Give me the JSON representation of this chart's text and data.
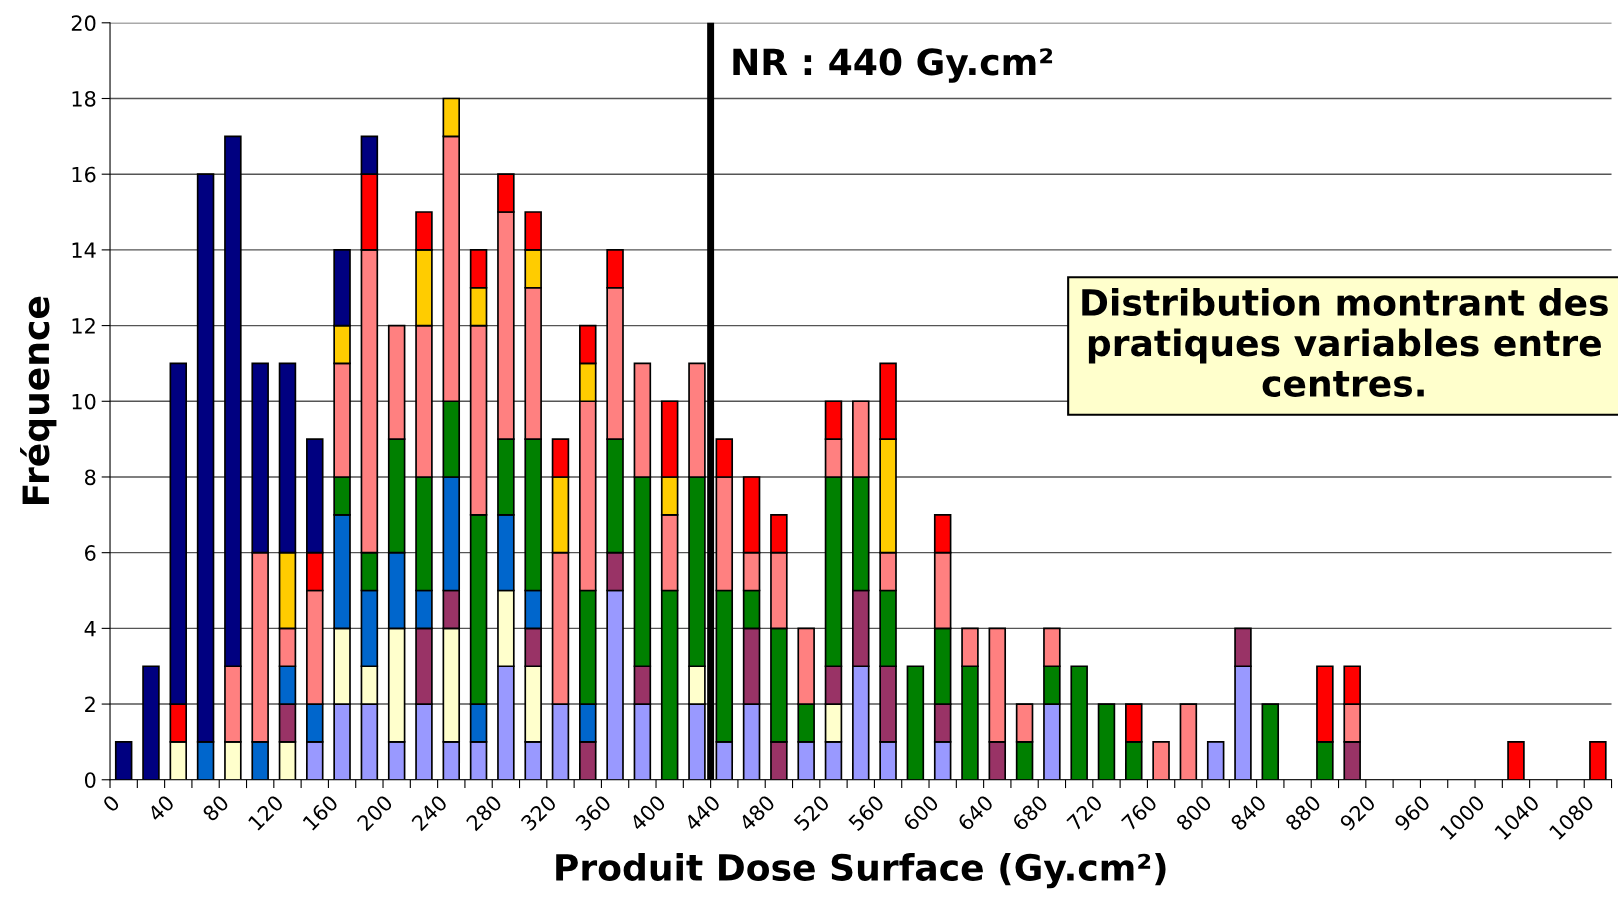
{
  "chart_data": {
    "type": "bar",
    "stacked": true,
    "xlabel": "Produit Dose Surface (Gy.cm²)",
    "ylabel": "Fréquence",
    "annotations": [
      "Distribution montrant des pratiques variables entre centres."
    ],
    "x": [
      10,
      30,
      50,
      70,
      90,
      110,
      130,
      150,
      170,
      190,
      210,
      230,
      250,
      270,
      290,
      310,
      330,
      350,
      370,
      390,
      410,
      430,
      450,
      470,
      490,
      510,
      530,
      550,
      570,
      590,
      610,
      630,
      650,
      670,
      690,
      710,
      730,
      750,
      770,
      790,
      810,
      830,
      850,
      870,
      890,
      910,
      930,
      950,
      970,
      990,
      1010,
      1030,
      1050,
      1070,
      1090
    ],
    "xlim": [
      0,
      1100
    ],
    "xticks": [
      0,
      {
        "value": 20,
        "label": null
      },
      40,
      {
        "value": 60,
        "label": null
      },
      80,
      {
        "value": 100,
        "label": null
      },
      120,
      {
        "value": 140,
        "label": null
      },
      160,
      {
        "value": 180,
        "label": null
      },
      200,
      {
        "value": 220,
        "label": null
      },
      240,
      {
        "value": 260,
        "label": null
      },
      280,
      {
        "value": 300,
        "label": null
      },
      320,
      {
        "value": 340,
        "label": null
      },
      360,
      {
        "value": 380,
        "label": null
      },
      400,
      {
        "value": 420,
        "label": null
      },
      440,
      {
        "value": 460,
        "label": null
      },
      480,
      {
        "value": 500,
        "label": null
      },
      520,
      {
        "value": 540,
        "label": null
      },
      560,
      {
        "value": 580,
        "label": null
      },
      600,
      {
        "value": 620,
        "label": null
      },
      640,
      {
        "value": 660,
        "label": null
      },
      680,
      {
        "value": 700,
        "label": null
      },
      720,
      {
        "value": 740,
        "label": null
      },
      760,
      {
        "value": 780,
        "label": null
      },
      800,
      {
        "value": 820,
        "label": null
      },
      840,
      {
        "value": 860,
        "label": null
      },
      880,
      {
        "value": 900,
        "label": null
      },
      920,
      {
        "value": 940,
        "label": null
      },
      960,
      {
        "value": 980,
        "label": null
      },
      1000,
      {
        "value": 1020,
        "label": null
      },
      1040,
      {
        "value": 1060,
        "label": null
      },
      1080,
      {
        "value": 1100,
        "label": null
      }
    ],
    "ylim": [
      0,
      20
    ],
    "yticks": [
      0,
      2,
      4,
      6,
      8,
      10,
      12,
      14,
      16,
      18,
      20
    ],
    "grid": "y",
    "ref_lines": [
      {
        "axis": "x",
        "value": 440,
        "label": "NR : 440 Gy.cm²",
        "color": "#000000",
        "line_style": "solid"
      }
    ],
    "series": [
      {
        "color": "#9999ff",
        "values": [
          null,
          null,
          null,
          null,
          null,
          null,
          null,
          1,
          2,
          2,
          1,
          2,
          1,
          1,
          3,
          1,
          2,
          null,
          5,
          2,
          null,
          2,
          1,
          2,
          null,
          1,
          1,
          3,
          1,
          null,
          1,
          null,
          null,
          null,
          2,
          null,
          null,
          null,
          null,
          null,
          1,
          3,
          null,
          null,
          null,
          null,
          null,
          null,
          null,
          null,
          null,
          null,
          null,
          null,
          null
        ]
      },
      {
        "color": "#ffffcc",
        "values": [
          null,
          null,
          1,
          null,
          1,
          null,
          1,
          null,
          2,
          1,
          3,
          null,
          3,
          null,
          2,
          2,
          null,
          null,
          null,
          null,
          null,
          1,
          null,
          null,
          null,
          null,
          1,
          null,
          null,
          null,
          null,
          null,
          null,
          null,
          null,
          null,
          null,
          null,
          null,
          null,
          null,
          null,
          null,
          null,
          null,
          null,
          null,
          null,
          null,
          null,
          null,
          null,
          null,
          null,
          null
        ]
      },
      {
        "color": "#993366",
        "values": [
          null,
          null,
          null,
          null,
          null,
          null,
          1,
          null,
          null,
          null,
          null,
          2,
          1,
          null,
          null,
          1,
          null,
          1,
          1,
          1,
          null,
          null,
          null,
          2,
          1,
          null,
          1,
          2,
          2,
          null,
          1,
          null,
          1,
          null,
          null,
          null,
          null,
          null,
          null,
          null,
          null,
          1,
          null,
          null,
          null,
          1,
          null,
          null,
          null,
          null,
          null,
          null,
          null,
          null,
          null
        ]
      },
      {
        "color": "#0066cc",
        "values": [
          null,
          null,
          null,
          1,
          null,
          1,
          1,
          1,
          3,
          2,
          2,
          1,
          3,
          1,
          2,
          1,
          null,
          1,
          null,
          null,
          null,
          null,
          null,
          null,
          null,
          null,
          null,
          null,
          null,
          null,
          null,
          null,
          null,
          null,
          null,
          null,
          null,
          null,
          null,
          null,
          null,
          null,
          null,
          null,
          null,
          null,
          null,
          null,
          null,
          null,
          null,
          null,
          null,
          null,
          null
        ]
      },
      {
        "color": "#008000",
        "values": [
          null,
          null,
          null,
          null,
          null,
          null,
          null,
          null,
          1,
          1,
          3,
          3,
          2,
          5,
          2,
          4,
          null,
          3,
          3,
          5,
          5,
          5,
          4,
          1,
          3,
          1,
          5,
          3,
          2,
          3,
          2,
          3,
          null,
          1,
          1,
          3,
          2,
          1,
          null,
          null,
          null,
          null,
          2,
          null,
          1,
          null,
          null,
          null,
          null,
          null,
          null,
          null,
          null,
          null,
          null
        ]
      },
      {
        "color": "#ff8080",
        "values": [
          null,
          null,
          null,
          null,
          2,
          5,
          1,
          3,
          3,
          8,
          3,
          4,
          7,
          5,
          6,
          4,
          4,
          5,
          4,
          3,
          2,
          3,
          3,
          1,
          2,
          2,
          1,
          2,
          1,
          null,
          2,
          1,
          3,
          1,
          1,
          null,
          null,
          null,
          1,
          2,
          null,
          null,
          null,
          null,
          null,
          1,
          null,
          null,
          null,
          null,
          null,
          null,
          null,
          null,
          null
        ]
      },
      {
        "color": "#ffcc00",
        "values": [
          null,
          null,
          null,
          null,
          null,
          null,
          2,
          null,
          1,
          null,
          null,
          2,
          1,
          1,
          null,
          1,
          2,
          1,
          null,
          null,
          1,
          null,
          null,
          null,
          null,
          null,
          null,
          null,
          3,
          null,
          null,
          null,
          null,
          null,
          null,
          null,
          null,
          null,
          null,
          null,
          null,
          null,
          null,
          null,
          null,
          null,
          null,
          null,
          null,
          null,
          null,
          null,
          null,
          null,
          null
        ]
      },
      {
        "color": "#ff0000",
        "values": [
          null,
          null,
          1,
          null,
          null,
          null,
          null,
          1,
          null,
          2,
          null,
          1,
          null,
          1,
          1,
          1,
          1,
          1,
          1,
          null,
          2,
          null,
          1,
          2,
          1,
          null,
          1,
          null,
          2,
          null,
          1,
          null,
          null,
          null,
          null,
          null,
          null,
          1,
          null,
          null,
          null,
          null,
          null,
          null,
          2,
          1,
          null,
          null,
          null,
          null,
          null,
          1,
          null,
          null,
          1
        ]
      },
      {
        "color": "#000080",
        "values": [
          1,
          3,
          9,
          15,
          14,
          5,
          5,
          3,
          2,
          1,
          null,
          null,
          null,
          null,
          null,
          null,
          null,
          null,
          null,
          null,
          null,
          null,
          null,
          null,
          null,
          null,
          null,
          null,
          null,
          null,
          null,
          null,
          null,
          null,
          null,
          null,
          null,
          null,
          null,
          null,
          null,
          null,
          null,
          null,
          null,
          null,
          null,
          null,
          null,
          null,
          null,
          null,
          null,
          null,
          null
        ]
      }
    ]
  }
}
